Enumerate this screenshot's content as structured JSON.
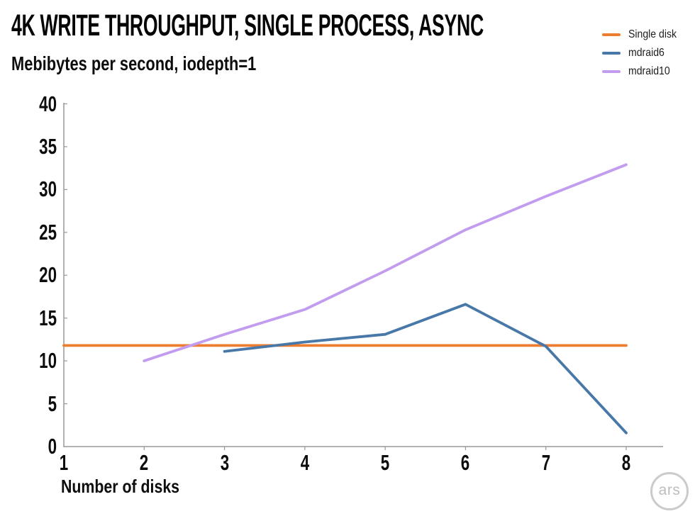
{
  "header": {
    "title": "4K WRITE THROUGHPUT, SINGLE PROCESS, ASYNC",
    "subtitle": "Mebibytes per second, iodepth=1"
  },
  "legend": [
    {
      "label": "Single disk",
      "color": "#ED7D31"
    },
    {
      "label": "mdraid6",
      "color": "#4878A8"
    },
    {
      "label": "mdraid10",
      "color": "#C29CEF"
    }
  ],
  "chart_data": {
    "type": "line",
    "title": "4K WRITE THROUGHPUT, SINGLE PROCESS, ASYNC",
    "subtitle": "Mebibytes per second, iodepth=1",
    "xlabel": "Number of disks",
    "ylabel": "Mebibytes per second",
    "xlim": [
      1,
      8
    ],
    "ylim": [
      0,
      40
    ],
    "x_ticks": [
      1,
      2,
      3,
      4,
      5,
      6,
      7,
      8
    ],
    "y_ticks": [
      0,
      5,
      10,
      15,
      20,
      25,
      30,
      35,
      40
    ],
    "grid": false,
    "legend_position": "top-right",
    "axis_color": "#999999",
    "series": [
      {
        "name": "Single disk",
        "color": "#ED7D31",
        "x": [
          1,
          2,
          3,
          4,
          5,
          6,
          7,
          8
        ],
        "y": [
          11.8,
          11.8,
          11.8,
          11.8,
          11.8,
          11.8,
          11.8,
          11.8
        ]
      },
      {
        "name": "mdraid6",
        "color": "#4878A8",
        "x": [
          3,
          4,
          5,
          6,
          7,
          8
        ],
        "y": [
          11.1,
          12.2,
          13.1,
          16.6,
          11.7,
          1.6
        ]
      },
      {
        "name": "mdraid10",
        "color": "#C29CEF",
        "x": [
          2,
          3,
          4,
          5,
          6,
          7,
          8
        ],
        "y": [
          10.0,
          13.1,
          16.0,
          20.5,
          25.3,
          29.2,
          32.9
        ]
      }
    ]
  },
  "footer": {
    "logo_text": "ars"
  }
}
